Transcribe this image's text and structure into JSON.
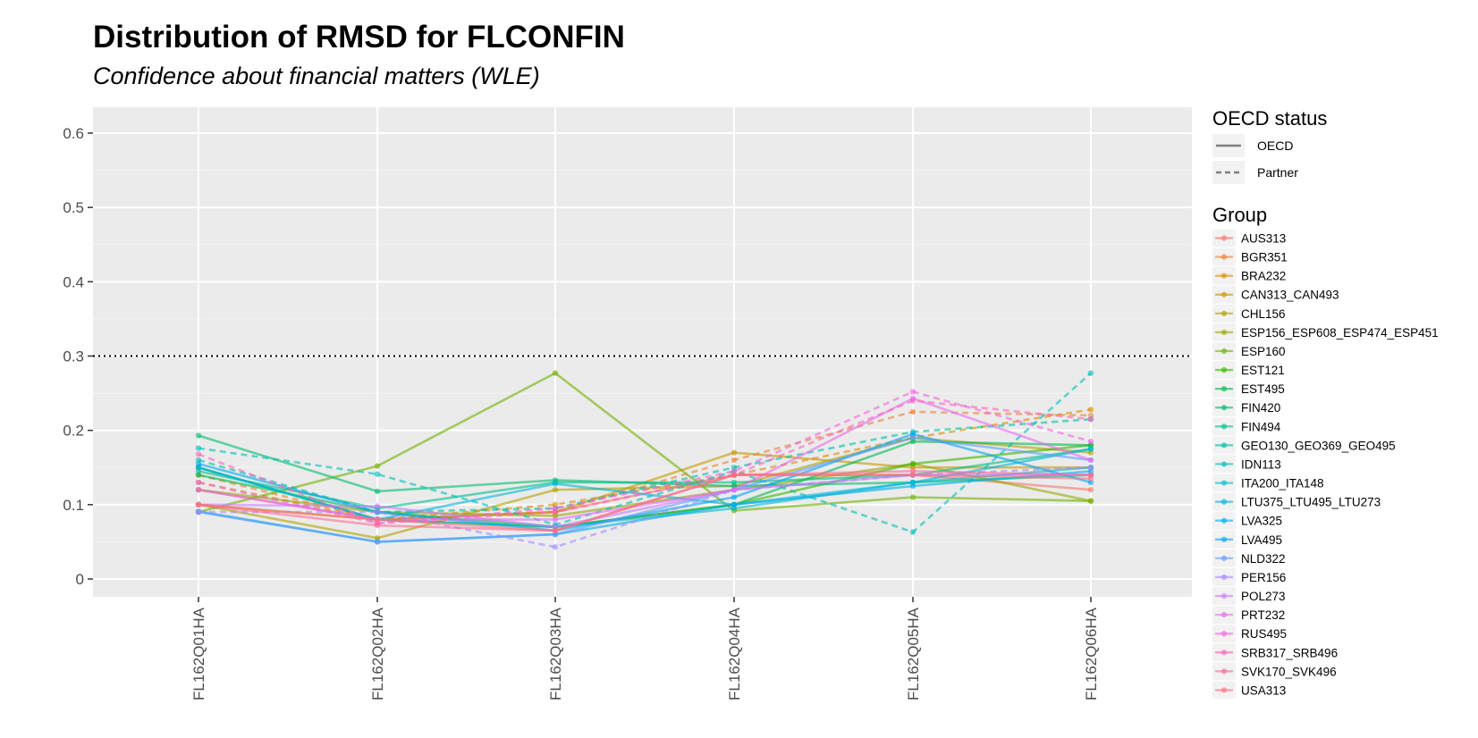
{
  "chart_data": {
    "type": "line",
    "title": "Distribution of RMSD for FLCONFIN",
    "subtitle": "Confidence about financial matters (WLE)",
    "xlabel": "",
    "ylabel": "",
    "categories": [
      "FL162Q01HA",
      "FL162Q02HA",
      "FL162Q03HA",
      "FL162Q04HA",
      "FL162Q05HA",
      "FL162Q06HA"
    ],
    "ylim": [
      -0.03,
      0.63
    ],
    "yticks": [
      0,
      0.1,
      0.2,
      0.3,
      0.4,
      0.5,
      0.6
    ],
    "ytick_labels": [
      "0",
      "0.1",
      "0.2",
      "0.3",
      "0.4",
      "0.5",
      "0.6"
    ],
    "reference_line": {
      "y": 0.3,
      "style": "dotted"
    },
    "grid": true,
    "legend_position": "right",
    "oecd_legend": {
      "title": "OECD status",
      "entries": [
        {
          "label": "OECD",
          "linetype": "solid"
        },
        {
          "label": "Partner",
          "linetype": "dashed"
        }
      ]
    },
    "group_legend_title": "Group",
    "series": [
      {
        "name": "AUS313",
        "oecd": "OECD",
        "color": "#F8766D",
        "values": [
          0.12,
          0.08,
          0.09,
          0.14,
          0.14,
          0.12
        ]
      },
      {
        "name": "BGR351",
        "oecd": "Partner",
        "color": "#EC8239",
        "values": [
          0.14,
          0.08,
          0.09,
          0.16,
          0.225,
          0.22
        ]
      },
      {
        "name": "BRA232",
        "oecd": "Partner",
        "color": "#DB8E00",
        "values": [
          0.13,
          0.08,
          0.1,
          0.14,
          0.19,
          0.228
        ]
      },
      {
        "name": "CAN313_CAN493",
        "oecd": "OECD",
        "color": "#C79800",
        "values": [
          0.1,
          0.08,
          0.09,
          0.17,
          0.15,
          0.15
        ]
      },
      {
        "name": "CHL156",
        "oecd": "OECD",
        "color": "#AFA100",
        "values": [
          0.1,
          0.055,
          0.12,
          0.125,
          0.19,
          0.17
        ]
      },
      {
        "name": "ESP156_ESP608_ESP474_ESP451",
        "oecd": "OECD",
        "color": "#96A900",
        "values": [
          0.12,
          0.09,
          0.085,
          0.12,
          0.155,
          0.105
        ]
      },
      {
        "name": "ESP160",
        "oecd": "OECD",
        "color": "#72B000",
        "values": [
          0.09,
          0.152,
          0.277,
          0.092,
          0.11,
          0.105
        ]
      },
      {
        "name": "EST121",
        "oecd": "OECD",
        "color": "#39B600",
        "values": [
          0.15,
          0.08,
          0.07,
          0.1,
          0.155,
          0.18
        ]
      },
      {
        "name": "EST495",
        "oecd": "OECD",
        "color": "#00BB4E",
        "values": [
          0.14,
          0.09,
          0.07,
          0.1,
          0.185,
          0.18
        ]
      },
      {
        "name": "FIN420",
        "oecd": "OECD",
        "color": "#00BE70",
        "values": [
          0.193,
          0.118,
          0.133,
          0.125,
          0.13,
          0.14
        ]
      },
      {
        "name": "FIN494",
        "oecd": "OECD",
        "color": "#00C08B",
        "values": [
          0.145,
          0.095,
          0.13,
          0.13,
          0.14,
          0.175
        ]
      },
      {
        "name": "GEO130_GEO369_GEO495",
        "oecd": "Partner",
        "color": "#00C1A3",
        "values": [
          0.16,
          0.09,
          0.095,
          0.15,
          0.198,
          0.215
        ]
      },
      {
        "name": "IDN113",
        "oecd": "Partner",
        "color": "#00BFB8",
        "values": [
          0.176,
          0.141,
          0.073,
          0.145,
          0.063,
          0.277
        ]
      },
      {
        "name": "ITA200_ITA148",
        "oecd": "OECD",
        "color": "#00BCCC",
        "values": [
          0.15,
          0.08,
          0.07,
          0.095,
          0.13,
          0.15
        ]
      },
      {
        "name": "LTU375_LTU495_LTU273",
        "oecd": "OECD",
        "color": "#00B6DC",
        "values": [
          0.15,
          0.08,
          0.128,
          0.1,
          0.13,
          0.175
        ]
      },
      {
        "name": "LVA325",
        "oecd": "OECD",
        "color": "#00AEEA",
        "values": [
          0.091,
          0.05,
          0.06,
          0.1,
          0.125,
          0.145
        ]
      },
      {
        "name": "LVA495",
        "oecd": "OECD",
        "color": "#00A5F4",
        "values": [
          0.155,
          0.09,
          0.065,
          0.11,
          0.195,
          0.13
        ]
      },
      {
        "name": "NLD322",
        "oecd": "OECD",
        "color": "#619CFF",
        "values": [
          0.09,
          0.05,
          0.06,
          0.12,
          0.19,
          0.16
        ]
      },
      {
        "name": "PER156",
        "oecd": "Partner",
        "color": "#A58AFF",
        "values": [
          0.09,
          0.09,
          0.043,
          0.12,
          0.14,
          0.15
        ]
      },
      {
        "name": "POL273",
        "oecd": "OECD",
        "color": "#C77CFF",
        "values": [
          0.1,
          0.098,
          0.07,
          0.12,
          0.14,
          0.14
        ]
      },
      {
        "name": "PRT232",
        "oecd": "OECD",
        "color": "#E76BF3",
        "values": [
          0.12,
          0.08,
          0.08,
          0.12,
          0.243,
          0.16
        ]
      },
      {
        "name": "RUS495",
        "oecd": "Partner",
        "color": "#F763E0",
        "values": [
          0.13,
          0.075,
          0.095,
          0.145,
          0.252,
          0.185
        ]
      },
      {
        "name": "SRB317_SRB496",
        "oecd": "Partner",
        "color": "#FF62BC",
        "values": [
          0.168,
          0.075,
          0.09,
          0.14,
          0.24,
          0.215
        ]
      },
      {
        "name": "SVK170_SVK496",
        "oecd": "OECD",
        "color": "#FF6A98",
        "values": [
          0.1,
          0.072,
          0.065,
          0.14,
          0.145,
          0.14
        ]
      },
      {
        "name": "USA313",
        "oecd": "OECD",
        "color": "#FC717F",
        "values": [
          0.1,
          0.08,
          0.065,
          0.14,
          0.14,
          0.135
        ]
      }
    ]
  }
}
